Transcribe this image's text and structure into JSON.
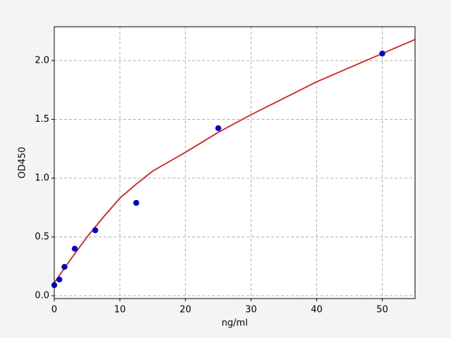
{
  "chart_data": {
    "type": "scatter",
    "xlabel": "ng/ml",
    "ylabel": "OD450",
    "x": [
      0,
      0.78,
      1.56,
      3.125,
      6.25,
      12.5,
      25,
      50
    ],
    "values": [
      0.09,
      0.138,
      0.245,
      0.4,
      0.557,
      0.79,
      1.425,
      2.06
    ],
    "color": "#0000cc",
    "fit_line": {
      "color": "#d62020",
      "x": [
        0,
        1,
        2.5,
        5,
        7.5,
        10,
        12.5,
        15,
        20,
        25,
        30,
        35,
        40,
        45,
        50,
        55
      ],
      "values": [
        0.11,
        0.19,
        0.31,
        0.5,
        0.67,
        0.83,
        0.95,
        1.06,
        1.22,
        1.39,
        1.54,
        1.68,
        1.82,
        1.94,
        2.06,
        2.18
      ]
    },
    "xlim": [
      0,
      55
    ],
    "ylim": [
      -0.024,
      2.288
    ],
    "xticks": [
      0,
      10,
      20,
      30,
      40,
      50
    ],
    "yticks": [
      {
        "value": 0,
        "label": "0.0"
      },
      {
        "value": 0.5,
        "label": "0.5"
      },
      {
        "value": 1,
        "label": "1.0"
      },
      {
        "value": 1.5,
        "label": "1.5"
      },
      {
        "value": 2,
        "label": "2.0"
      }
    ],
    "grid": true
  }
}
